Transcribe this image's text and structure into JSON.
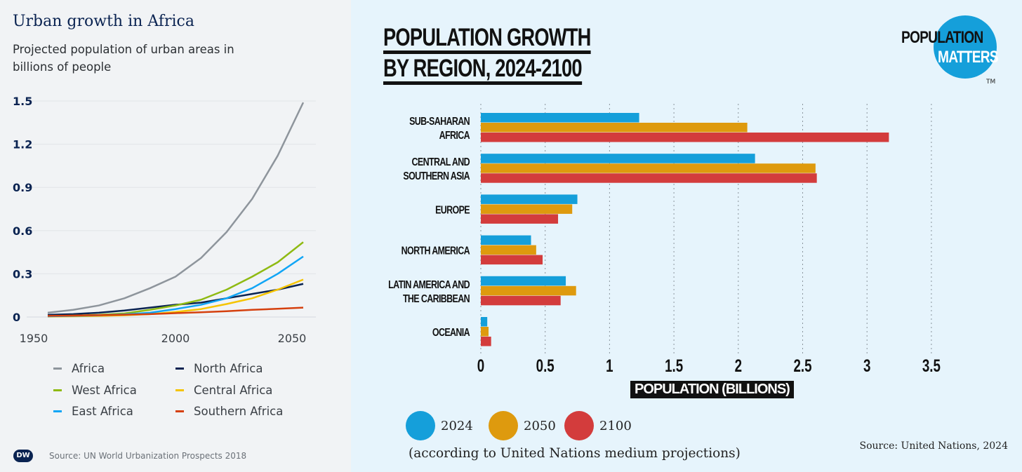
{
  "chart_data": [
    {
      "type": "line",
      "title": "Urban growth in Africa",
      "subtitle": "Projected population of urban areas in billions of people",
      "x": [
        1950,
        1960,
        1970,
        1980,
        1990,
        2000,
        2010,
        2020,
        2030,
        2040,
        2050
      ],
      "xticks": [
        "1950",
        "2000",
        "2050"
      ],
      "yticks": [
        "0",
        "0.3",
        "0.6",
        "0.9",
        "1.2",
        "1.5"
      ],
      "ylim": [
        0,
        1.5
      ],
      "grid": true,
      "legend": "bottom",
      "series": [
        {
          "name": "Africa",
          "color": "#8e959c",
          "values": [
            0.03,
            0.05,
            0.08,
            0.13,
            0.2,
            0.28,
            0.41,
            0.59,
            0.82,
            1.12,
            1.49
          ]
        },
        {
          "name": "North Africa",
          "color": "#0a2351",
          "values": [
            0.015,
            0.02,
            0.03,
            0.045,
            0.065,
            0.085,
            0.1,
            0.13,
            0.16,
            0.19,
            0.23
          ]
        },
        {
          "name": "West Africa",
          "color": "#8fba12",
          "values": [
            0.005,
            0.01,
            0.015,
            0.025,
            0.05,
            0.08,
            0.12,
            0.19,
            0.28,
            0.38,
            0.52
          ]
        },
        {
          "name": "Central Africa",
          "color": "#f5c400",
          "values": [
            0.003,
            0.005,
            0.008,
            0.012,
            0.02,
            0.035,
            0.055,
            0.09,
            0.13,
            0.19,
            0.26
          ]
        },
        {
          "name": "East Africa",
          "color": "#10a5f5",
          "values": [
            0.005,
            0.008,
            0.012,
            0.018,
            0.03,
            0.055,
            0.085,
            0.13,
            0.2,
            0.3,
            0.42
          ]
        },
        {
          "name": "Southern Africa",
          "color": "#d5400e",
          "values": [
            0.008,
            0.01,
            0.013,
            0.016,
            0.02,
            0.027,
            0.033,
            0.04,
            0.05,
            0.057,
            0.065
          ]
        }
      ],
      "source": "Source: UN World Urbanization Prospects 2018",
      "logo": "DW"
    },
    {
      "type": "bar",
      "orientation": "horizontal",
      "title_lines": [
        "POPULATION GROWTH",
        "BY REGION, 2024-2100"
      ],
      "categories": [
        [
          "SUB-SAHARAN",
          "AFRICA"
        ],
        [
          "CENTRAL AND",
          "SOUTHERN ASIA"
        ],
        [
          "EUROPE"
        ],
        [
          "NORTH AMERICA"
        ],
        [
          "LATIN AMERICA AND",
          "THE CARIBBEAN"
        ],
        [
          "OCEANIA"
        ]
      ],
      "xlabel": "POPULATION (BILLIONS)",
      "xlim": [
        0,
        3.5
      ],
      "xticks": [
        "0",
        "0.5",
        "1",
        "1.5",
        "2",
        "2.5",
        "3",
        "3.5"
      ],
      "grid": true,
      "series": [
        {
          "name": "2024",
          "color": "#159fda",
          "values": [
            1.23,
            2.13,
            0.75,
            0.39,
            0.66,
            0.05
          ]
        },
        {
          "name": "2050",
          "color": "#de9a0e",
          "values": [
            2.07,
            2.6,
            0.71,
            0.43,
            0.74,
            0.06
          ]
        },
        {
          "name": "2100",
          "color": "#d33c3c",
          "values": [
            3.17,
            2.61,
            0.6,
            0.48,
            0.62,
            0.08
          ]
        }
      ],
      "note": "(according to United Nations medium projections)",
      "source": "Source: United Nations, 2024",
      "logo": {
        "line1": "POPULATION",
        "line2": "MATTERS",
        "tm": "TM"
      }
    }
  ]
}
